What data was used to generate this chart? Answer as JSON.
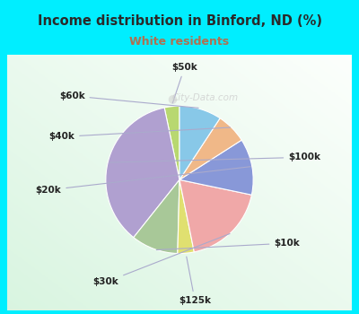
{
  "title": "Income distribution in Binford, ND (%)",
  "subtitle": "White residents",
  "title_color": "#2a2a2a",
  "subtitle_color": "#b07050",
  "bg_cyan": "#00eeff",
  "bg_chart_color1": "#c8ecd0",
  "bg_chart_color2": "#f0f8f8",
  "labels": [
    "$50k",
    "$100k",
    "$10k",
    "$125k",
    "$30k",
    "$20k",
    "$40k",
    "$60k"
  ],
  "sizes": [
    3.2,
    35,
    10,
    3.5,
    18,
    12,
    6.5,
    9
  ],
  "colors": [
    "#b8d870",
    "#b0a0d0",
    "#a8c898",
    "#e0e070",
    "#f0a8a8",
    "#8898d8",
    "#f0b888",
    "#88c8e8"
  ],
  "startangle": 90,
  "watermark": "City-Data.com"
}
